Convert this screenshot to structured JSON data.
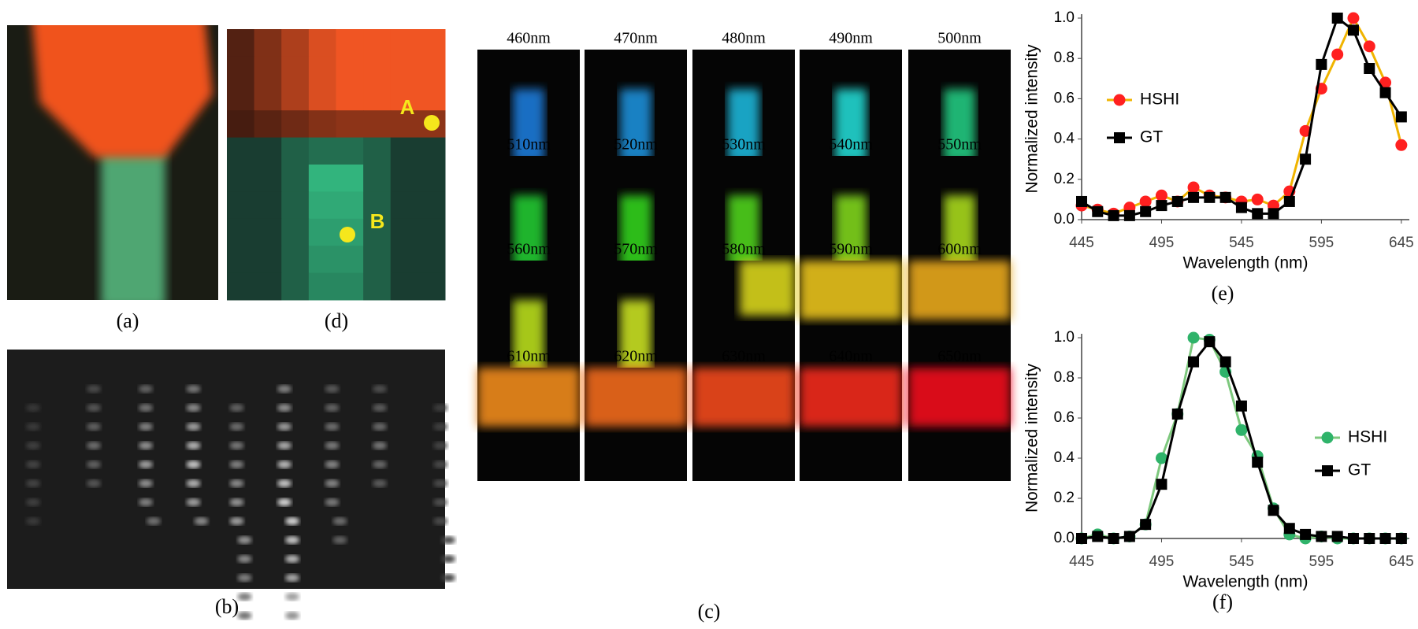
{
  "panel_labels": {
    "a": "(a)",
    "b": "(b)",
    "c": "(c)",
    "d": "(d)",
    "e": "(e)",
    "f": "(f)"
  },
  "points": [
    "A",
    "B"
  ],
  "tiles": [
    "460nm",
    "470nm",
    "480nm",
    "490nm",
    "500nm",
    "510nm",
    "520nm",
    "530nm",
    "540nm",
    "550nm",
    "560nm",
    "570nm",
    "580nm",
    "590nm",
    "600nm",
    "610nm",
    "620nm",
    "630nm",
    "640nm",
    "650nm"
  ],
  "chart_data": [
    {
      "type": "line",
      "x_label": "Wavelength (nm)",
      "y_label": "Normalized intensity",
      "x": [
        445,
        455,
        465,
        475,
        485,
        495,
        505,
        515,
        525,
        535,
        545,
        555,
        565,
        575,
        585,
        595,
        605,
        615,
        625,
        635,
        645
      ],
      "xlim": [
        445,
        650
      ],
      "xticks": [
        445,
        495,
        545,
        595,
        645
      ],
      "ylim": [
        0,
        1
      ],
      "yticks": [
        {
          "value": 0,
          "label": "0.0"
        },
        0.2,
        0.4,
        0.6,
        0.8,
        {
          "value": 1,
          "label": "1.0"
        }
      ],
      "legend": "left",
      "series": [
        {
          "name": "HSHI",
          "color": "#f0b400",
          "marker_color": "#ff2020",
          "marker": "circle",
          "values": [
            0.07,
            0.05,
            0.03,
            0.06,
            0.09,
            0.12,
            0.09,
            0.16,
            0.12,
            0.11,
            0.09,
            0.1,
            0.07,
            0.14,
            0.44,
            0.65,
            0.82,
            1.0,
            0.86,
            0.68,
            0.37
          ]
        },
        {
          "name": "GT",
          "color": "#000000",
          "marker_color": "#000000",
          "marker": "square",
          "values": [
            0.09,
            0.04,
            0.02,
            0.02,
            0.04,
            0.07,
            0.09,
            0.11,
            0.11,
            0.11,
            0.06,
            0.03,
            0.03,
            0.09,
            0.3,
            0.77,
            1.0,
            0.94,
            0.75,
            0.63,
            0.51
          ]
        }
      ]
    },
    {
      "type": "line",
      "x_label": "Wavelength (nm)",
      "y_label": "Normalized intensity",
      "x": [
        445,
        455,
        465,
        475,
        485,
        495,
        505,
        515,
        525,
        535,
        545,
        555,
        565,
        575,
        585,
        595,
        605,
        615,
        625,
        635,
        645
      ],
      "xlim": [
        445,
        650
      ],
      "xticks": [
        445,
        495,
        545,
        595,
        645
      ],
      "ylim": [
        0,
        1
      ],
      "yticks": [
        {
          "value": 0,
          "label": "0.0"
        },
        0.2,
        0.4,
        0.6,
        0.8,
        {
          "value": 1,
          "label": "1.0"
        }
      ],
      "legend": "right",
      "series": [
        {
          "name": "HSHI",
          "color": "#7dc87d",
          "marker_color": "#2fb36a",
          "marker": "circle",
          "values": [
            0,
            0.02,
            0,
            0.01,
            0.07,
            0.4,
            0.62,
            1.0,
            0.99,
            0.83,
            0.54,
            0.41,
            0.15,
            0.02,
            0,
            0.01,
            0,
            0,
            0,
            0,
            0
          ]
        },
        {
          "name": "GT",
          "color": "#000000",
          "marker_color": "#000000",
          "marker": "square",
          "values": [
            0,
            0.01,
            0,
            0.01,
            0.07,
            0.27,
            0.62,
            0.88,
            0.98,
            0.88,
            0.66,
            0.38,
            0.14,
            0.05,
            0.02,
            0.01,
            0.01,
            0,
            0,
            0,
            0
          ]
        }
      ]
    }
  ]
}
